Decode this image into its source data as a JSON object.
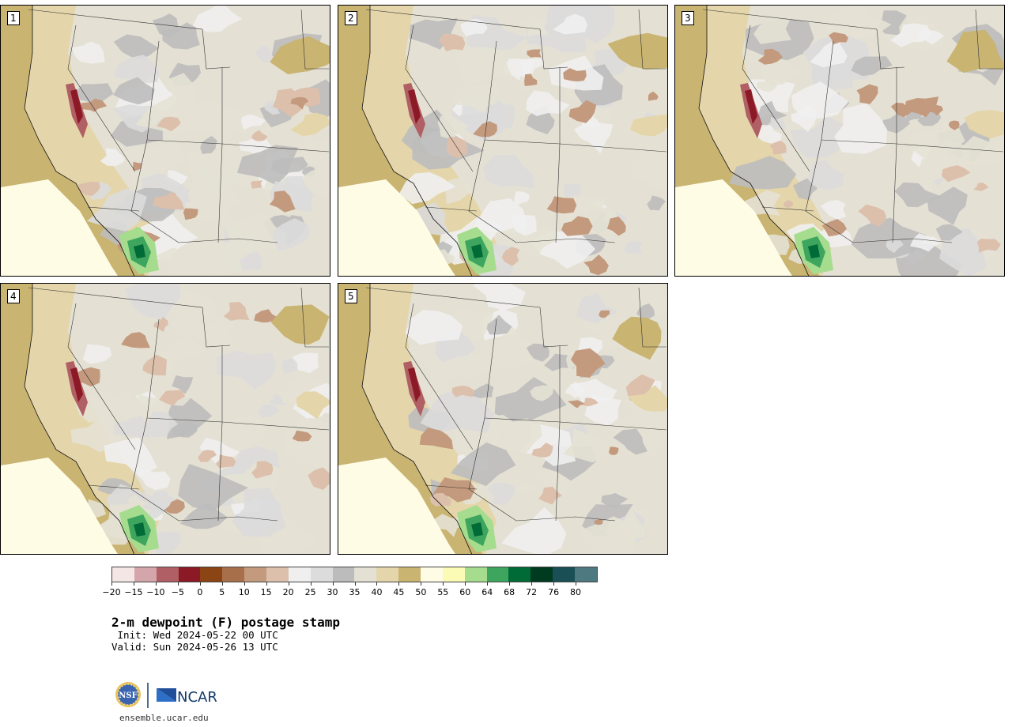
{
  "panels": [
    {
      "label": "1"
    },
    {
      "label": "2"
    },
    {
      "label": "3"
    },
    {
      "label": "4"
    },
    {
      "label": "5"
    }
  ],
  "colorbar": {
    "colors": [
      "#f5e6e6",
      "#d4a5ab",
      "#b05f64",
      "#8c1a26",
      "#8b4413",
      "#a8704a",
      "#c49a7e",
      "#dcc0ac",
      "#efefef",
      "#dcdcdc",
      "#bcbcbc",
      "#e4e1d4",
      "#e4d6aa",
      "#c9b472",
      "#fffce6",
      "#fbfbb5",
      "#a6dc8e",
      "#3ea55f",
      "#006b37",
      "#003a1f",
      "#1a4f56",
      "#4f7980"
    ],
    "tick_labels": [
      "−20",
      "−15",
      "−10",
      "−5",
      "0",
      "5",
      "10",
      "15",
      "20",
      "25",
      "30",
      "35",
      "40",
      "45",
      "50",
      "55",
      "60",
      "64",
      "68",
      "72",
      "76",
      "80"
    ]
  },
  "title": "2-m dewpoint (F) postage stamp",
  "init": " Init: Wed 2024-05-22 00 UTC",
  "valid": "Valid: Sun 2024-05-26 13 UTC",
  "logo": {
    "nsf": "NSF",
    "ncar": "NCAR"
  },
  "site": "ensemble.ucar.edu"
}
